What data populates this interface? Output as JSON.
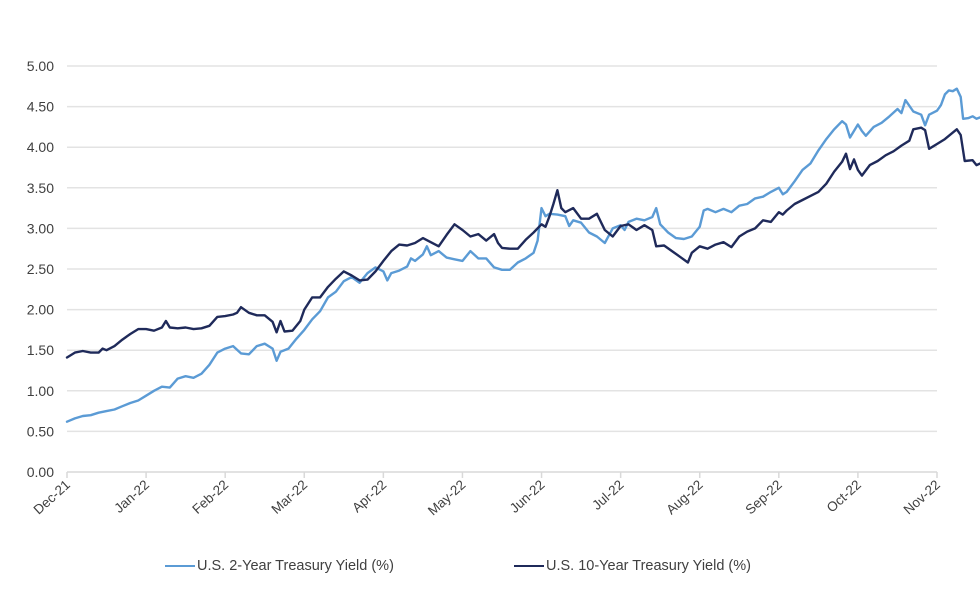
{
  "chart_data": {
    "type": "line",
    "title": "",
    "xlabel": "",
    "ylabel": "",
    "ylim": [
      0,
      5
    ],
    "y_ticks": [
      "0.00",
      "0.50",
      "1.00",
      "1.50",
      "2.00",
      "2.50",
      "3.00",
      "3.50",
      "4.00",
      "4.50",
      "5.00"
    ],
    "x_ticks": [
      "Dec-21",
      "Jan-22",
      "Feb-22",
      "Mar-22",
      "Apr-22",
      "May-22",
      "Jun-22",
      "Jul-22",
      "Aug-22",
      "Sep-22",
      "Oct-22",
      "Nov-22"
    ],
    "x_unit": "months since Dec-21",
    "grid": true,
    "legend_position": "bottom",
    "series": [
      {
        "name": "U.S. 2-Year Treasury Yield (%)",
        "color": "#5b9bd5",
        "points": [
          [
            0.0,
            0.62
          ],
          [
            0.1,
            0.66
          ],
          [
            0.2,
            0.69
          ],
          [
            0.3,
            0.7
          ],
          [
            0.4,
            0.73
          ],
          [
            0.5,
            0.75
          ],
          [
            0.6,
            0.77
          ],
          [
            0.7,
            0.81
          ],
          [
            0.8,
            0.85
          ],
          [
            0.9,
            0.88
          ],
          [
            1.0,
            0.94
          ],
          [
            1.1,
            1.0
          ],
          [
            1.2,
            1.05
          ],
          [
            1.3,
            1.04
          ],
          [
            1.4,
            1.15
          ],
          [
            1.5,
            1.18
          ],
          [
            1.6,
            1.16
          ],
          [
            1.7,
            1.21
          ],
          [
            1.8,
            1.32
          ],
          [
            1.9,
            1.47
          ],
          [
            2.0,
            1.52
          ],
          [
            2.1,
            1.55
          ],
          [
            2.2,
            1.46
          ],
          [
            2.3,
            1.45
          ],
          [
            2.4,
            1.55
          ],
          [
            2.5,
            1.58
          ],
          [
            2.6,
            1.52
          ],
          [
            2.65,
            1.37
          ],
          [
            2.7,
            1.48
          ],
          [
            2.8,
            1.52
          ],
          [
            2.9,
            1.64
          ],
          [
            3.0,
            1.75
          ],
          [
            3.1,
            1.88
          ],
          [
            3.2,
            1.98
          ],
          [
            3.3,
            2.15
          ],
          [
            3.4,
            2.22
          ],
          [
            3.5,
            2.35
          ],
          [
            3.6,
            2.4
          ],
          [
            3.7,
            2.33
          ],
          [
            3.8,
            2.45
          ],
          [
            3.9,
            2.52
          ],
          [
            4.0,
            2.47
          ],
          [
            4.05,
            2.36
          ],
          [
            4.1,
            2.45
          ],
          [
            4.2,
            2.48
          ],
          [
            4.3,
            2.53
          ],
          [
            4.35,
            2.63
          ],
          [
            4.4,
            2.6
          ],
          [
            4.5,
            2.68
          ],
          [
            4.55,
            2.78
          ],
          [
            4.6,
            2.67
          ],
          [
            4.7,
            2.72
          ],
          [
            4.8,
            2.64
          ],
          [
            4.9,
            2.62
          ],
          [
            5.0,
            2.6
          ],
          [
            5.1,
            2.72
          ],
          [
            5.2,
            2.63
          ],
          [
            5.3,
            2.63
          ],
          [
            5.4,
            2.52
          ],
          [
            5.5,
            2.49
          ],
          [
            5.6,
            2.49
          ],
          [
            5.7,
            2.58
          ],
          [
            5.8,
            2.63
          ],
          [
            5.9,
            2.7
          ],
          [
            5.95,
            2.85
          ],
          [
            6.0,
            3.25
          ],
          [
            6.05,
            3.15
          ],
          [
            6.1,
            3.18
          ],
          [
            6.2,
            3.17
          ],
          [
            6.3,
            3.15
          ],
          [
            6.35,
            3.03
          ],
          [
            6.4,
            3.1
          ],
          [
            6.5,
            3.07
          ],
          [
            6.6,
            2.95
          ],
          [
            6.7,
            2.9
          ],
          [
            6.8,
            2.82
          ],
          [
            6.9,
            3.0
          ],
          [
            7.0,
            3.04
          ],
          [
            7.05,
            2.98
          ],
          [
            7.1,
            3.08
          ],
          [
            7.2,
            3.12
          ],
          [
            7.3,
            3.1
          ],
          [
            7.4,
            3.14
          ],
          [
            7.45,
            3.25
          ],
          [
            7.5,
            3.05
          ],
          [
            7.6,
            2.95
          ],
          [
            7.7,
            2.88
          ],
          [
            7.8,
            2.87
          ],
          [
            7.9,
            2.9
          ],
          [
            8.0,
            3.02
          ],
          [
            8.05,
            3.22
          ],
          [
            8.1,
            3.24
          ],
          [
            8.2,
            3.2
          ],
          [
            8.3,
            3.24
          ],
          [
            8.4,
            3.2
          ],
          [
            8.5,
            3.28
          ],
          [
            8.6,
            3.3
          ],
          [
            8.7,
            3.37
          ],
          [
            8.8,
            3.39
          ],
          [
            8.9,
            3.45
          ],
          [
            9.0,
            3.5
          ],
          [
            9.05,
            3.42
          ],
          [
            9.1,
            3.45
          ],
          [
            9.2,
            3.58
          ],
          [
            9.3,
            3.72
          ],
          [
            9.4,
            3.8
          ],
          [
            9.5,
            3.96
          ],
          [
            9.6,
            4.1
          ],
          [
            9.7,
            4.22
          ],
          [
            9.8,
            4.32
          ],
          [
            9.85,
            4.28
          ],
          [
            9.9,
            4.12
          ],
          [
            10.0,
            4.28
          ],
          [
            10.05,
            4.2
          ],
          [
            10.1,
            4.14
          ],
          [
            10.2,
            4.25
          ],
          [
            10.3,
            4.3
          ],
          [
            10.4,
            4.38
          ],
          [
            10.5,
            4.47
          ],
          [
            10.55,
            4.42
          ],
          [
            10.6,
            4.58
          ],
          [
            10.7,
            4.44
          ],
          [
            10.8,
            4.4
          ],
          [
            10.85,
            4.27
          ],
          [
            10.9,
            4.4
          ],
          [
            11.0,
            4.45
          ],
          [
            11.05,
            4.52
          ],
          [
            11.1,
            4.65
          ],
          [
            11.15,
            4.7
          ],
          [
            11.2,
            4.69
          ],
          [
            11.25,
            4.72
          ],
          [
            11.3,
            4.62
          ],
          [
            11.33,
            4.35
          ],
          [
            11.4,
            4.36
          ],
          [
            11.45,
            4.38
          ],
          [
            11.5,
            4.35
          ],
          [
            11.55,
            4.37
          ]
        ]
      },
      {
        "name": "U.S. 10-Year Treasury Yield (%)",
        "color": "#1f2a5a",
        "points": [
          [
            0.0,
            1.41
          ],
          [
            0.1,
            1.47
          ],
          [
            0.2,
            1.49
          ],
          [
            0.3,
            1.47
          ],
          [
            0.4,
            1.47
          ],
          [
            0.45,
            1.52
          ],
          [
            0.5,
            1.5
          ],
          [
            0.6,
            1.55
          ],
          [
            0.7,
            1.63
          ],
          [
            0.8,
            1.7
          ],
          [
            0.9,
            1.76
          ],
          [
            1.0,
            1.76
          ],
          [
            1.1,
            1.74
          ],
          [
            1.2,
            1.78
          ],
          [
            1.25,
            1.86
          ],
          [
            1.3,
            1.78
          ],
          [
            1.4,
            1.77
          ],
          [
            1.5,
            1.78
          ],
          [
            1.6,
            1.76
          ],
          [
            1.7,
            1.77
          ],
          [
            1.8,
            1.8
          ],
          [
            1.9,
            1.91
          ],
          [
            2.0,
            1.92
          ],
          [
            2.1,
            1.94
          ],
          [
            2.15,
            1.96
          ],
          [
            2.2,
            2.03
          ],
          [
            2.3,
            1.96
          ],
          [
            2.4,
            1.93
          ],
          [
            2.5,
            1.93
          ],
          [
            2.6,
            1.85
          ],
          [
            2.65,
            1.72
          ],
          [
            2.7,
            1.86
          ],
          [
            2.75,
            1.73
          ],
          [
            2.85,
            1.74
          ],
          [
            2.95,
            1.86
          ],
          [
            3.0,
            2.0
          ],
          [
            3.1,
            2.15
          ],
          [
            3.2,
            2.15
          ],
          [
            3.3,
            2.28
          ],
          [
            3.4,
            2.38
          ],
          [
            3.5,
            2.47
          ],
          [
            3.6,
            2.42
          ],
          [
            3.7,
            2.36
          ],
          [
            3.8,
            2.37
          ],
          [
            3.9,
            2.47
          ],
          [
            4.0,
            2.6
          ],
          [
            4.1,
            2.72
          ],
          [
            4.2,
            2.8
          ],
          [
            4.3,
            2.79
          ],
          [
            4.4,
            2.82
          ],
          [
            4.5,
            2.88
          ],
          [
            4.6,
            2.83
          ],
          [
            4.7,
            2.78
          ],
          [
            4.8,
            2.92
          ],
          [
            4.9,
            3.05
          ],
          [
            5.0,
            2.98
          ],
          [
            5.1,
            2.9
          ],
          [
            5.2,
            2.93
          ],
          [
            5.3,
            2.85
          ],
          [
            5.4,
            2.93
          ],
          [
            5.45,
            2.82
          ],
          [
            5.5,
            2.76
          ],
          [
            5.6,
            2.75
          ],
          [
            5.7,
            2.75
          ],
          [
            5.8,
            2.86
          ],
          [
            5.9,
            2.95
          ],
          [
            6.0,
            3.05
          ],
          [
            6.05,
            3.02
          ],
          [
            6.1,
            3.15
          ],
          [
            6.15,
            3.3
          ],
          [
            6.2,
            3.47
          ],
          [
            6.25,
            3.25
          ],
          [
            6.3,
            3.2
          ],
          [
            6.4,
            3.25
          ],
          [
            6.5,
            3.12
          ],
          [
            6.6,
            3.12
          ],
          [
            6.7,
            3.18
          ],
          [
            6.8,
            2.98
          ],
          [
            6.9,
            2.9
          ],
          [
            7.0,
            3.03
          ],
          [
            7.1,
            3.05
          ],
          [
            7.2,
            2.98
          ],
          [
            7.3,
            3.04
          ],
          [
            7.4,
            2.98
          ],
          [
            7.45,
            2.78
          ],
          [
            7.55,
            2.79
          ],
          [
            7.65,
            2.72
          ],
          [
            7.75,
            2.65
          ],
          [
            7.85,
            2.58
          ],
          [
            7.9,
            2.7
          ],
          [
            8.0,
            2.78
          ],
          [
            8.1,
            2.75
          ],
          [
            8.2,
            2.8
          ],
          [
            8.3,
            2.83
          ],
          [
            8.4,
            2.77
          ],
          [
            8.5,
            2.9
          ],
          [
            8.6,
            2.96
          ],
          [
            8.7,
            3.0
          ],
          [
            8.8,
            3.1
          ],
          [
            8.9,
            3.08
          ],
          [
            9.0,
            3.2
          ],
          [
            9.05,
            3.17
          ],
          [
            9.1,
            3.22
          ],
          [
            9.2,
            3.3
          ],
          [
            9.3,
            3.35
          ],
          [
            9.4,
            3.4
          ],
          [
            9.5,
            3.45
          ],
          [
            9.6,
            3.55
          ],
          [
            9.7,
            3.7
          ],
          [
            9.8,
            3.82
          ],
          [
            9.85,
            3.92
          ],
          [
            9.9,
            3.73
          ],
          [
            9.95,
            3.85
          ],
          [
            10.0,
            3.72
          ],
          [
            10.05,
            3.65
          ],
          [
            10.15,
            3.78
          ],
          [
            10.25,
            3.83
          ],
          [
            10.35,
            3.9
          ],
          [
            10.45,
            3.95
          ],
          [
            10.55,
            4.02
          ],
          [
            10.65,
            4.08
          ],
          [
            10.7,
            4.22
          ],
          [
            10.8,
            4.24
          ],
          [
            10.85,
            4.21
          ],
          [
            10.9,
            3.98
          ],
          [
            11.0,
            4.04
          ],
          [
            11.1,
            4.1
          ],
          [
            11.2,
            4.18
          ],
          [
            11.25,
            4.22
          ],
          [
            11.3,
            4.15
          ],
          [
            11.35,
            3.83
          ],
          [
            11.45,
            3.84
          ],
          [
            11.5,
            3.78
          ],
          [
            11.55,
            3.8
          ]
        ]
      }
    ]
  }
}
